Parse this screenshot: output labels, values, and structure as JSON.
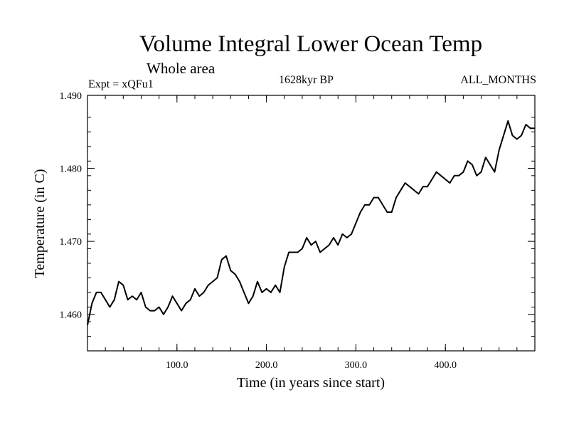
{
  "chart_data": {
    "type": "line",
    "title": "Volume Integral Lower Ocean Temp",
    "subtitle": "Whole area",
    "experiment_label": "Expt = xQFu1",
    "period_label": "1628kyr BP",
    "months_label": "ALL_MONTHS",
    "xlabel": "Time (in years since start)",
    "ylabel": "Temperature (in C)",
    "xlim": [
      0,
      500
    ],
    "ylim": [
      1.455,
      1.49
    ],
    "xticks": [
      100,
      200,
      300,
      400
    ],
    "xtick_labels": [
      "100.0",
      "200.0",
      "300.0",
      "400.0"
    ],
    "yticks": [
      1.46,
      1.47,
      1.48,
      1.49
    ],
    "ytick_labels": [
      "1.460",
      "1.470",
      "1.480",
      "1.490"
    ],
    "grid": false,
    "line_color": "#000000",
    "series": [
      {
        "name": "Lower ocean temperature",
        "x": [
          0,
          5,
          10,
          15,
          20,
          25,
          30,
          35,
          40,
          45,
          50,
          55,
          60,
          65,
          70,
          75,
          80,
          85,
          90,
          95,
          100,
          105,
          110,
          115,
          120,
          125,
          130,
          135,
          140,
          145,
          150,
          155,
          160,
          165,
          170,
          175,
          180,
          185,
          190,
          195,
          200,
          205,
          210,
          215,
          220,
          225,
          230,
          235,
          240,
          245,
          250,
          255,
          260,
          265,
          270,
          275,
          280,
          285,
          290,
          295,
          300,
          305,
          310,
          315,
          320,
          325,
          330,
          335,
          340,
          345,
          350,
          355,
          360,
          365,
          370,
          375,
          380,
          385,
          390,
          395,
          400,
          405,
          410,
          415,
          420,
          425,
          430,
          435,
          440,
          445,
          450,
          455,
          460,
          465,
          470,
          475,
          480,
          485,
          490,
          495,
          500
        ],
        "values": [
          1.4585,
          1.4615,
          1.463,
          1.463,
          1.462,
          1.461,
          1.462,
          1.4645,
          1.464,
          1.462,
          1.4625,
          1.462,
          1.463,
          1.461,
          1.4605,
          1.4605,
          1.461,
          1.46,
          1.461,
          1.4625,
          1.4615,
          1.4605,
          1.4615,
          1.462,
          1.4635,
          1.4625,
          1.463,
          1.464,
          1.4645,
          1.465,
          1.4675,
          1.468,
          1.466,
          1.4655,
          1.4645,
          1.463,
          1.4615,
          1.4625,
          1.4645,
          1.463,
          1.4635,
          1.463,
          1.464,
          1.463,
          1.4665,
          1.4685,
          1.4685,
          1.4685,
          1.469,
          1.4705,
          1.4695,
          1.47,
          1.4685,
          1.469,
          1.4695,
          1.4705,
          1.4695,
          1.471,
          1.4705,
          1.471,
          1.4725,
          1.474,
          1.475,
          1.475,
          1.476,
          1.476,
          1.475,
          1.474,
          1.474,
          1.476,
          1.477,
          1.478,
          1.4775,
          1.477,
          1.4765,
          1.4775,
          1.4775,
          1.4785,
          1.4795,
          1.479,
          1.4785,
          1.478,
          1.479,
          1.479,
          1.4795,
          1.481,
          1.4805,
          1.479,
          1.4795,
          1.4815,
          1.4805,
          1.4795,
          1.4825,
          1.4845,
          1.4865,
          1.4845,
          1.484,
          1.4845,
          1.486,
          1.4855,
          1.4855
        ]
      }
    ]
  }
}
